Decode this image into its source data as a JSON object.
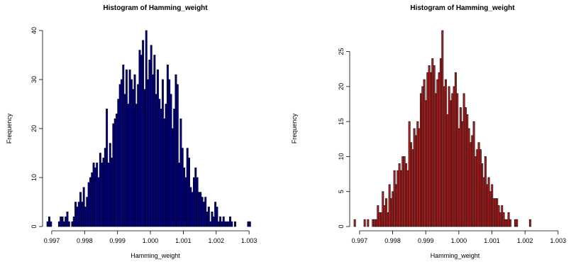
{
  "chart_data": [
    {
      "type": "bar",
      "title": "Histogram of Hamming_weight",
      "xlabel": "Hamming_weight",
      "ylabel": "Frequency",
      "bar_color": "#00008B",
      "edge_color": "#000000",
      "xlim": [
        0.99685,
        1.00345
      ],
      "ylim": [
        0,
        40
      ],
      "bin_start": 0.99685,
      "bin_width": 5e-05,
      "xticks": [
        "0.997",
        "0.998",
        "0.999",
        "1.000",
        "1.001",
        "1.002",
        "1.003"
      ],
      "yticks": [
        "0",
        "10",
        "20",
        "30",
        "40"
      ],
      "values": [
        1,
        2,
        1,
        0,
        0,
        0,
        0,
        1,
        2,
        2,
        1,
        2,
        3,
        1,
        0,
        1,
        2,
        5,
        4,
        5,
        7,
        5,
        8,
        4,
        6,
        9,
        10,
        11,
        13,
        12,
        13,
        10,
        15,
        13,
        14,
        16,
        24,
        13,
        17,
        14,
        21,
        22,
        23,
        26,
        29,
        30,
        33,
        27,
        32,
        25,
        32,
        30,
        28,
        31,
        25,
        29,
        36,
        35,
        38,
        28,
        40,
        30,
        34,
        37,
        31,
        35,
        27,
        32,
        26,
        24,
        30,
        22,
        25,
        33,
        30,
        27,
        20,
        24,
        31,
        29,
        13,
        22,
        16,
        12,
        10,
        16,
        14,
        8,
        7,
        10,
        12,
        10,
        7,
        7,
        6,
        5,
        6,
        3,
        4,
        1,
        3,
        2,
        5,
        4,
        1,
        2,
        1,
        2,
        1,
        1,
        1,
        2,
        1,
        0,
        1,
        0,
        0,
        0,
        0,
        0,
        0,
        0,
        1,
        1
      ]
    },
    {
      "type": "bar",
      "title": "Histogram of Hamming_weight",
      "xlabel": "Hamming_weight",
      "ylabel": "Frequency",
      "bar_color": "#B22222",
      "edge_color": "#000000",
      "xlim": [
        0.99683,
        1.00294
      ],
      "ylim": [
        0,
        28
      ],
      "bin_start": 0.99683,
      "bin_width": 5e-05,
      "xticks": [
        "0.997",
        "0.998",
        "0.999",
        "1.000",
        "1.001",
        "1.002",
        "1.003"
      ],
      "yticks": [
        "0",
        "5",
        "10",
        "15",
        "20",
        "25"
      ],
      "values": [
        1,
        0,
        0,
        0,
        0,
        0,
        1,
        0,
        1,
        0,
        0,
        1,
        1,
        1,
        3,
        2,
        2,
        5,
        3,
        4,
        2,
        6,
        4,
        5,
        8,
        6,
        8,
        9,
        8,
        10,
        10,
        9,
        8,
        15,
        12,
        11,
        14,
        13,
        15,
        14,
        19,
        20,
        21,
        18,
        22,
        23,
        22,
        24,
        23,
        19,
        21,
        22,
        24,
        28,
        20,
        21,
        16,
        20,
        18,
        19,
        20,
        22,
        19,
        14,
        17,
        15,
        19,
        17,
        16,
        14,
        12,
        13,
        15,
        10,
        11,
        12,
        11,
        9,
        7,
        10,
        6,
        7,
        5,
        6,
        4,
        4,
        4,
        3,
        2,
        3,
        2,
        1,
        1,
        2,
        1,
        0,
        0,
        1,
        1,
        0,
        0,
        0,
        0,
        0,
        0,
        0,
        1
      ]
    }
  ]
}
